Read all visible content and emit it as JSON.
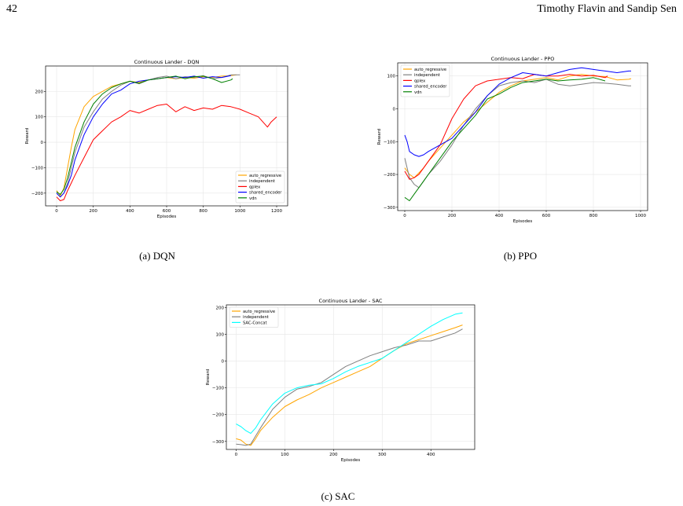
{
  "header": {
    "page_number": "42",
    "authors": "Timothy Flavin and Sandip Sen"
  },
  "captions": {
    "a": "(a) DQN",
    "b": "(b) PPO",
    "c": "(c) SAC"
  },
  "chart_data": [
    {
      "type": "line",
      "title": "Continuous Lander - DQN",
      "xlabel": "Episodes",
      "ylabel": "Reward",
      "xlim": [
        -60,
        1260
      ],
      "ylim": [
        -250,
        300
      ],
      "xticks": [
        0,
        200,
        400,
        600,
        800,
        1000,
        1200
      ],
      "yticks": [
        -200,
        -100,
        0,
        100,
        200
      ],
      "grid": true,
      "legend": "lower-right",
      "series": [
        {
          "name": "auto_regressive",
          "color": "#ffa500",
          "x": [
            0,
            20,
            40,
            60,
            80,
            100,
            150,
            200,
            250,
            300,
            350,
            400,
            450,
            500,
            550,
            600,
            650,
            700,
            750,
            800,
            850,
            900,
            950,
            980
          ],
          "y": [
            -190,
            -210,
            -180,
            -100,
            -20,
            50,
            140,
            180,
            200,
            220,
            230,
            240,
            235,
            245,
            250,
            255,
            250,
            255,
            252,
            258,
            255,
            260,
            262,
            265
          ]
        },
        {
          "name": "independent",
          "color": "#808080",
          "x": [
            0,
            20,
            40,
            60,
            80,
            100,
            150,
            200,
            250,
            300,
            350,
            400,
            450,
            500,
            550,
            600,
            650,
            700,
            750,
            800,
            850,
            900,
            950,
            1000
          ],
          "y": [
            -200,
            -215,
            -200,
            -160,
            -100,
            -40,
            60,
            120,
            170,
            200,
            225,
            240,
            230,
            245,
            255,
            260,
            250,
            258,
            255,
            262,
            250,
            255,
            265,
            265
          ]
        },
        {
          "name": "qplex",
          "color": "#ff0000",
          "x": [
            0,
            20,
            40,
            60,
            80,
            100,
            150,
            200,
            250,
            300,
            350,
            400,
            450,
            500,
            550,
            600,
            650,
            700,
            750,
            800,
            850,
            900,
            950,
            1000,
            1050,
            1100,
            1150,
            1170,
            1200
          ],
          "y": [
            -215,
            -230,
            -225,
            -190,
            -160,
            -130,
            -60,
            10,
            45,
            80,
            100,
            125,
            115,
            130,
            145,
            150,
            120,
            140,
            125,
            135,
            130,
            145,
            140,
            130,
            115,
            100,
            60,
            80,
            100
          ]
        },
        {
          "name": "shared_encoder",
          "color": "#0000ff",
          "x": [
            0,
            20,
            40,
            60,
            80,
            100,
            150,
            200,
            250,
            300,
            350,
            400,
            450,
            500,
            550,
            600,
            650,
            700,
            750,
            800,
            850,
            900,
            950
          ],
          "y": [
            -200,
            -215,
            -200,
            -170,
            -130,
            -70,
            30,
            100,
            150,
            190,
            205,
            230,
            240,
            245,
            250,
            255,
            258,
            255,
            260,
            252,
            258,
            255,
            262
          ]
        },
        {
          "name": "vdn",
          "color": "#008000",
          "x": [
            0,
            20,
            40,
            60,
            80,
            100,
            150,
            200,
            250,
            300,
            350,
            400,
            450,
            500,
            550,
            600,
            650,
            700,
            750,
            800,
            850,
            900,
            950,
            960
          ],
          "y": [
            -195,
            -205,
            -185,
            -140,
            -80,
            -20,
            80,
            150,
            190,
            215,
            230,
            240,
            232,
            245,
            250,
            255,
            260,
            250,
            258,
            260,
            250,
            235,
            245,
            250
          ]
        }
      ]
    },
    {
      "type": "line",
      "title": "Continuous Lander - PPO",
      "xlabel": "Episodes",
      "ylabel": "Reward",
      "xlim": [
        -30,
        1030
      ],
      "ylim": [
        -310,
        140
      ],
      "xticks": [
        0,
        200,
        400,
        600,
        800,
        1000
      ],
      "yticks": [
        -300,
        -200,
        -100,
        0,
        100
      ],
      "grid": true,
      "legend": "upper-left",
      "series": [
        {
          "name": "auto_regressive",
          "color": "#ffa500",
          "x": [
            0,
            20,
            40,
            60,
            80,
            100,
            150,
            200,
            250,
            300,
            350,
            400,
            450,
            500,
            550,
            600,
            650,
            700,
            750,
            800,
            850,
            900,
            950,
            960
          ],
          "y": [
            -180,
            -200,
            -210,
            -195,
            -180,
            -160,
            -120,
            -80,
            -40,
            -10,
            20,
            50,
            70,
            85,
            90,
            95,
            88,
            100,
            105,
            100,
            98,
            88,
            90,
            92
          ]
        },
        {
          "name": "independent",
          "color": "#808080",
          "x": [
            0,
            20,
            40,
            60,
            80,
            100,
            150,
            200,
            250,
            300,
            350,
            400,
            450,
            500,
            550,
            600,
            650,
            700,
            750,
            800,
            850,
            900,
            950,
            960
          ],
          "y": [
            -150,
            -210,
            -230,
            -240,
            -220,
            -200,
            -160,
            -110,
            -50,
            0,
            40,
            70,
            80,
            85,
            80,
            90,
            75,
            70,
            75,
            80,
            78,
            75,
            70,
            70
          ]
        },
        {
          "name": "qplex",
          "color": "#ff0000",
          "x": [
            0,
            20,
            40,
            60,
            80,
            100,
            150,
            200,
            250,
            300,
            350,
            400,
            450,
            500,
            550,
            600,
            650,
            700,
            750,
            800,
            850,
            860
          ],
          "y": [
            -190,
            -215,
            -210,
            -200,
            -180,
            -160,
            -110,
            -30,
            30,
            70,
            85,
            90,
            95,
            92,
            105,
            100,
            100,
            105,
            100,
            102,
            95,
            100
          ]
        },
        {
          "name": "shared_encoder",
          "color": "#0000ff",
          "x": [
            0,
            10,
            20,
            40,
            60,
            80,
            100,
            150,
            200,
            250,
            300,
            350,
            400,
            450,
            500,
            550,
            600,
            650,
            700,
            750,
            800,
            850,
            900,
            950,
            960
          ],
          "y": [
            -80,
            -100,
            -130,
            -140,
            -145,
            -140,
            -130,
            -110,
            -90,
            -50,
            -10,
            40,
            75,
            95,
            110,
            105,
            100,
            110,
            120,
            125,
            120,
            115,
            110,
            115,
            115
          ]
        },
        {
          "name": "vdn",
          "color": "#008000",
          "x": [
            0,
            10,
            20,
            40,
            60,
            80,
            100,
            150,
            200,
            250,
            300,
            350,
            400,
            450,
            500,
            550,
            600,
            650,
            700,
            750,
            800,
            850
          ],
          "y": [
            -270,
            -275,
            -280,
            -260,
            -240,
            -220,
            -200,
            -150,
            -100,
            -60,
            -20,
            30,
            45,
            65,
            80,
            85,
            90,
            85,
            88,
            90,
            95,
            85
          ]
        }
      ]
    },
    {
      "type": "line",
      "title": "Continuous Lander - SAC",
      "xlabel": "Episodes",
      "ylabel": "Reward",
      "xlim": [
        -20,
        490
      ],
      "ylim": [
        -330,
        210
      ],
      "xticks": [
        0,
        100,
        200,
        300,
        400
      ],
      "yticks": [
        -300,
        -200,
        -100,
        0,
        100,
        200
      ],
      "grid": true,
      "legend": "upper-left",
      "series": [
        {
          "name": "auto_regressive",
          "color": "#ffa500",
          "x": [
            0,
            10,
            20,
            30,
            40,
            50,
            75,
            100,
            125,
            150,
            175,
            200,
            225,
            250,
            275,
            300,
            325,
            350,
            375,
            400,
            425,
            450,
            465
          ],
          "y": [
            -290,
            -295,
            -310,
            -315,
            -290,
            -260,
            -210,
            -170,
            -145,
            -125,
            -100,
            -80,
            -60,
            -40,
            -20,
            10,
            40,
            65,
            80,
            95,
            110,
            125,
            135
          ]
        },
        {
          "name": "independent",
          "color": "#808080",
          "x": [
            0,
            10,
            20,
            30,
            40,
            50,
            75,
            100,
            125,
            150,
            175,
            200,
            225,
            250,
            275,
            300,
            325,
            350,
            375,
            400,
            425,
            450,
            465
          ],
          "y": [
            -310,
            -312,
            -315,
            -310,
            -280,
            -250,
            -180,
            -135,
            -105,
            -95,
            -80,
            -50,
            -20,
            0,
            20,
            35,
            50,
            60,
            75,
            75,
            90,
            105,
            120
          ]
        },
        {
          "name": "SAC-Concat",
          "color": "#00ffff",
          "x": [
            0,
            10,
            20,
            30,
            40,
            50,
            75,
            100,
            125,
            150,
            175,
            200,
            225,
            250,
            275,
            300,
            325,
            350,
            375,
            400,
            425,
            450,
            465
          ],
          "y": [
            -235,
            -245,
            -260,
            -270,
            -250,
            -220,
            -160,
            -120,
            -100,
            -90,
            -85,
            -65,
            -40,
            -20,
            -5,
            10,
            40,
            70,
            100,
            130,
            155,
            175,
            180
          ]
        }
      ]
    }
  ]
}
